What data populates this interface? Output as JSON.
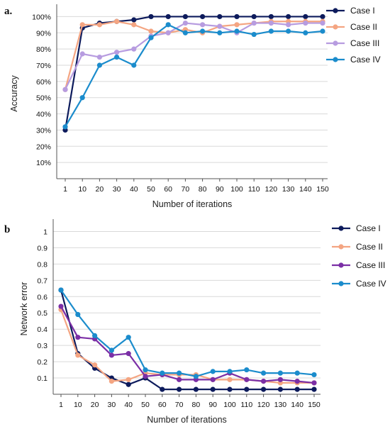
{
  "chart_data": [
    {
      "type": "line",
      "panel_label": "a.",
      "xlabel": "Number of iterations",
      "ylabel": "Accuracy",
      "categories": [
        "1",
        "10",
        "20",
        "30",
        "40",
        "50",
        "60",
        "70",
        "80",
        "90",
        "100",
        "110",
        "120",
        "130",
        "140",
        "150"
      ],
      "yticks": [
        "10%",
        "20%",
        "30%",
        "40%",
        "50%",
        "60%",
        "70%",
        "80%",
        "90%",
        "100%"
      ],
      "ylim": [
        0,
        105
      ],
      "grid": "horizontal",
      "legend_position": "top-right",
      "series": [
        {
          "name": "Case I",
          "color": "#0d1b5c",
          "values": [
            30,
            93,
            96,
            97,
            98,
            100,
            100,
            100,
            100,
            100,
            100,
            100,
            100,
            100,
            100,
            100
          ]
        },
        {
          "name": "Case II",
          "color": "#f4a582",
          "values": [
            55,
            95,
            95,
            97,
            95,
            91,
            90,
            92,
            90,
            94,
            95,
            96,
            97,
            97,
            97,
            97
          ]
        },
        {
          "name": "Case III",
          "color": "#b79ce0",
          "values": [
            55,
            77,
            75,
            78,
            80,
            88,
            90,
            96,
            95,
            94,
            90,
            96,
            96,
            95,
            96,
            96
          ]
        },
        {
          "name": "Case IV",
          "color": "#1b8ccc",
          "values": [
            32,
            50,
            70,
            75,
            70,
            87,
            95,
            90,
            91,
            90,
            91,
            89,
            91,
            91,
            90,
            91
          ]
        }
      ]
    },
    {
      "type": "line",
      "panel_label": "b",
      "xlabel": "Number of iterations",
      "ylabel": "Network error",
      "categories": [
        "1",
        "10",
        "20",
        "30",
        "40",
        "50",
        "60",
        "70",
        "80",
        "90",
        "100",
        "110",
        "120",
        "130",
        "140",
        "150"
      ],
      "yticks": [
        "0.1",
        "0.2",
        "0.3",
        "0.4",
        "0.5",
        "0.6",
        "0.7",
        "0.8",
        "0.9",
        "1"
      ],
      "ylim": [
        0,
        1.05
      ],
      "grid": "horizontal",
      "legend_position": "right",
      "series": [
        {
          "name": "Case I",
          "color": "#0d1b5c",
          "values": [
            0.64,
            0.25,
            0.16,
            0.1,
            0.06,
            0.1,
            0.03,
            0.03,
            0.03,
            0.03,
            0.03,
            0.03,
            0.03,
            0.03,
            0.03,
            0.03
          ]
        },
        {
          "name": "Case II",
          "color": "#f4a582",
          "values": [
            0.52,
            0.24,
            0.18,
            0.08,
            0.09,
            0.13,
            0.12,
            0.12,
            0.12,
            0.09,
            0.09,
            0.09,
            0.08,
            0.07,
            0.07,
            0.07
          ]
        },
        {
          "name": "Case III",
          "color": "#7b2fa6",
          "values": [
            0.54,
            0.35,
            0.34,
            0.24,
            0.25,
            0.11,
            0.12,
            0.09,
            0.09,
            0.09,
            0.13,
            0.09,
            0.08,
            0.09,
            0.08,
            0.07
          ]
        },
        {
          "name": "Case IV",
          "color": "#1b8ccc",
          "values": [
            0.64,
            0.49,
            0.36,
            0.27,
            0.35,
            0.15,
            0.13,
            0.13,
            0.11,
            0.14,
            0.14,
            0.15,
            0.13,
            0.13,
            0.13,
            0.12
          ]
        }
      ]
    }
  ]
}
